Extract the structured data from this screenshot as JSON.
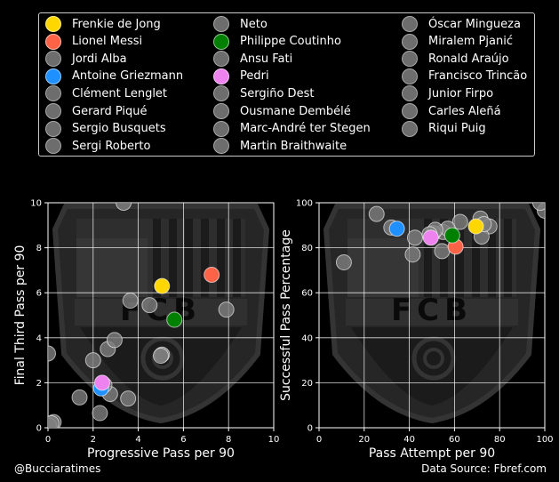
{
  "legend": {
    "players": [
      {
        "name": "Frenkie de Jong",
        "color": "#FFD700"
      },
      {
        "name": "Lionel Messi",
        "color": "#FF6347"
      },
      {
        "name": "Jordi Alba",
        "color": "#808080"
      },
      {
        "name": "Antoine Griezmann",
        "color": "#1E90FF"
      },
      {
        "name": "Clément Lenglet",
        "color": "#808080"
      },
      {
        "name": "Gerard Piqué",
        "color": "#808080"
      },
      {
        "name": "Sergio Busquets",
        "color": "#808080"
      },
      {
        "name": "Sergi Roberto",
        "color": "#808080"
      },
      {
        "name": "Neto",
        "color": "#808080"
      },
      {
        "name": "Philippe Coutinho",
        "color": "#008000"
      },
      {
        "name": "Ansu Fati",
        "color": "#808080"
      },
      {
        "name": "Pedri",
        "color": "#EE82EE"
      },
      {
        "name": "Sergiño Dest",
        "color": "#808080"
      },
      {
        "name": "Ousmane Dembélé",
        "color": "#808080"
      },
      {
        "name": "Marc-André ter Stegen",
        "color": "#808080"
      },
      {
        "name": "Martin Braithwaite",
        "color": "#808080"
      },
      {
        "name": "Óscar Mingueza",
        "color": "#808080"
      },
      {
        "name": "Miralem Pjanić",
        "color": "#808080"
      },
      {
        "name": "Ronald Araújo",
        "color": "#808080"
      },
      {
        "name": "Francisco Trincão",
        "color": "#808080"
      },
      {
        "name": "Junior Firpo",
        "color": "#808080"
      },
      {
        "name": "Carles Aleñá",
        "color": "#808080"
      },
      {
        "name": "Riqui Puig",
        "color": "#808080"
      }
    ]
  },
  "watermark": {
    "letters": "FCB"
  },
  "chart_data": [
    {
      "type": "scatter",
      "xlabel": "Progressive Pass per 90",
      "ylabel": "Final Third Pass per 90",
      "xlim": [
        0,
        10
      ],
      "ylim": [
        0,
        10
      ],
      "xticks": [
        "0",
        "2",
        "4",
        "6",
        "8",
        "10"
      ],
      "yticks": [
        "0",
        "2",
        "4",
        "6",
        "8",
        "10"
      ],
      "grid": true,
      "points": [
        {
          "player": "Frenkie de Jong",
          "x": 5.05,
          "y": 6.3
        },
        {
          "player": "Lionel Messi",
          "x": 7.25,
          "y": 6.8
        },
        {
          "player": "Jordi Alba",
          "x": 7.9,
          "y": 5.25
        },
        {
          "player": "Antoine Griezmann",
          "x": 2.35,
          "y": 1.75
        },
        {
          "player": "Clément Lenglet",
          "x": 2.0,
          "y": 3.0
        },
        {
          "player": "Gerard Piqué",
          "x": 2.65,
          "y": 3.5
        },
        {
          "player": "Sergio Busquets",
          "x": 4.5,
          "y": 5.45
        },
        {
          "player": "Sergi Roberto",
          "x": 3.65,
          "y": 5.65
        },
        {
          "player": "Neto",
          "x": 0.25,
          "y": 0.25
        },
        {
          "player": "Philippe Coutinho",
          "x": 5.6,
          "y": 4.8
        },
        {
          "player": "Ansu Fati",
          "x": 2.95,
          "y": 3.9
        },
        {
          "player": "Pedri",
          "x": 2.4,
          "y": 2.0
        },
        {
          "player": "Sergiño Dest",
          "x": 1.4,
          "y": 1.35
        },
        {
          "player": "Ousmane Dembélé",
          "x": 3.35,
          "y": 10.0
        },
        {
          "player": "Marc-André ter Stegen",
          "x": 0.05,
          "y": 0.1
        },
        {
          "player": "Martin Braithwaite",
          "x": 2.3,
          "y": 0.65
        },
        {
          "player": "Óscar Mingueza",
          "x": 2.75,
          "y": 1.5
        },
        {
          "player": "Miralem Pjanić",
          "x": 5.05,
          "y": 3.25
        },
        {
          "player": "Ronald Araújo",
          "x": 0.0,
          "y": 3.3
        },
        {
          "player": "Francisco Trincão",
          "x": 3.55,
          "y": 1.3
        },
        {
          "player": "Junior Firpo",
          "x": 0.15,
          "y": 0.2
        },
        {
          "player": "Carles Aleñá",
          "x": 2.5,
          "y": 1.9
        },
        {
          "player": "Riqui Puig",
          "x": 5.0,
          "y": 3.2
        }
      ]
    },
    {
      "type": "scatter",
      "xlabel": "Pass Attempt per 90",
      "ylabel": "Successful Pass Percentage",
      "xlim": [
        0,
        100
      ],
      "ylim": [
        0,
        100
      ],
      "xticks": [
        "0",
        "20",
        "40",
        "60",
        "80",
        "100"
      ],
      "yticks": [
        "0",
        "20",
        "40",
        "60",
        "80",
        "100"
      ],
      "grid": true,
      "points": [
        {
          "player": "Frenkie de Jong",
          "x": 69.5,
          "y": 89.5
        },
        {
          "player": "Lionel Messi",
          "x": 60.5,
          "y": 80.5
        },
        {
          "player": "Jordi Alba",
          "x": 55.0,
          "y": 87.0
        },
        {
          "player": "Antoine Griezmann",
          "x": 34.5,
          "y": 88.5
        },
        {
          "player": "Clément Lenglet",
          "x": 71.5,
          "y": 93.0
        },
        {
          "player": "Gerard Piqué",
          "x": 75.5,
          "y": 89.5
        },
        {
          "player": "Sergio Busquets",
          "x": 62.5,
          "y": 91.5
        },
        {
          "player": "Sergi Roberto",
          "x": 50.5,
          "y": 86.5
        },
        {
          "player": "Neto",
          "x": 25.5,
          "y": 95.0
        },
        {
          "player": "Philippe Coutinho",
          "x": 59.0,
          "y": 85.5
        },
        {
          "player": "Ansu Fati",
          "x": 41.5,
          "y": 77.0
        },
        {
          "player": "Pedri",
          "x": 49.5,
          "y": 84.5
        },
        {
          "player": "Sergiño Dest",
          "x": 57.0,
          "y": 88.5
        },
        {
          "player": "Ousmane Dembélé",
          "x": 54.5,
          "y": 78.5
        },
        {
          "player": "Marc-André ter Stegen",
          "x": 11.0,
          "y": 73.5
        },
        {
          "player": "Martin Braithwaite",
          "x": 42.5,
          "y": 84.5
        },
        {
          "player": "Óscar Mingueza",
          "x": 72.0,
          "y": 85.0
        },
        {
          "player": "Miralem Pjanić",
          "x": 51.5,
          "y": 88.0
        },
        {
          "player": "Ronald Araújo",
          "x": 100.0,
          "y": 96.5
        },
        {
          "player": "Francisco Trincão",
          "x": 32.0,
          "y": 89.0
        },
        {
          "player": "Junior Firpo",
          "x": 98.0,
          "y": 100.0
        },
        {
          "player": "Carles Aleñá",
          "x": 73.0,
          "y": 90.5
        },
        {
          "player": "Riqui Puig",
          "x": 49.0,
          "y": 86.0
        }
      ]
    }
  ],
  "footer": {
    "left": "@Bucciaratimes",
    "right": "Data Source: Fbref.com"
  }
}
